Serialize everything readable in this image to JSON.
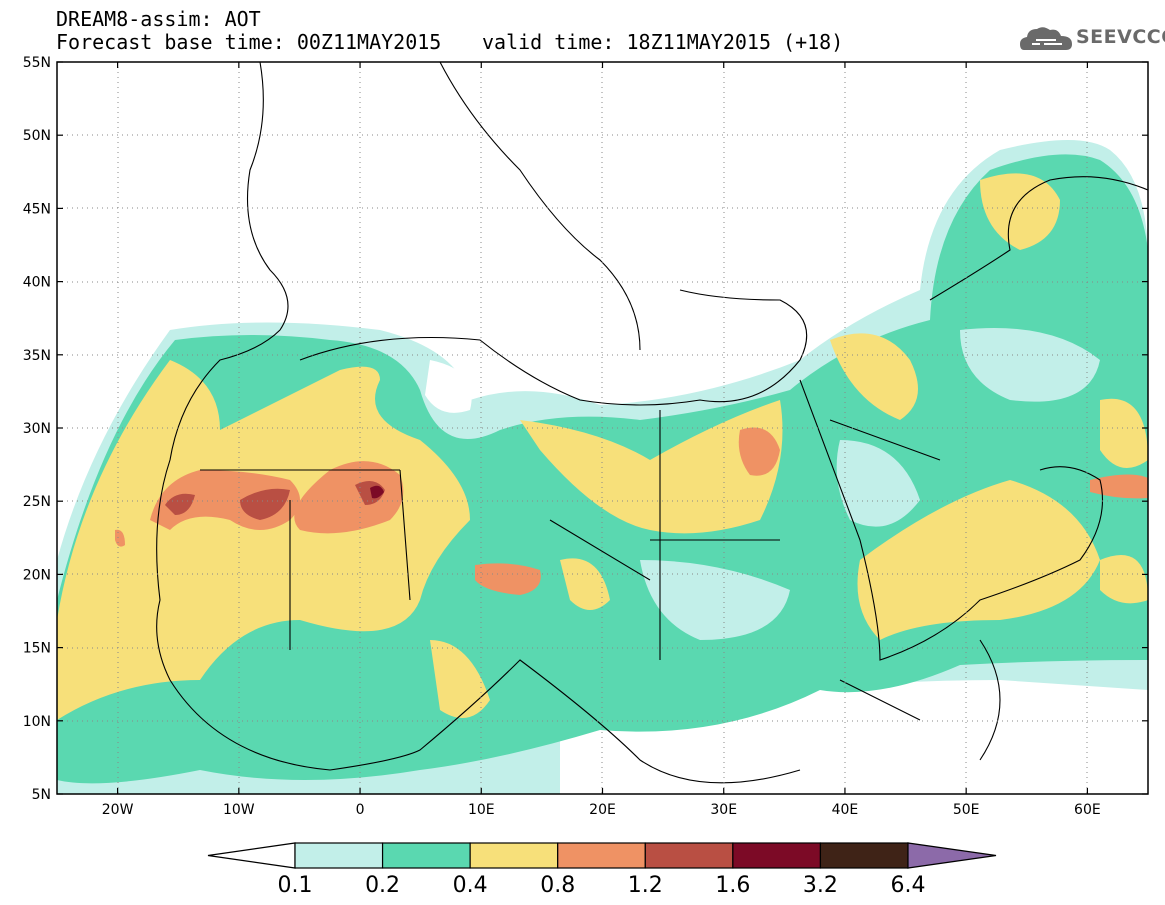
{
  "header": {
    "title": "DREAM8-assim: AOT",
    "base_time": "Forecast base time: 00Z11MAY2015",
    "valid_time": "valid time: 18Z11MAY2015 (+18)",
    "logo_text": "SEEVCCC"
  },
  "map": {
    "lat_labels": [
      "55N",
      "50N",
      "45N",
      "40N",
      "35N",
      "30N",
      "25N",
      "20N",
      "15N",
      "10N",
      "5N"
    ],
    "lat_values": [
      55,
      50,
      45,
      40,
      35,
      30,
      25,
      20,
      15,
      10,
      5
    ],
    "lon_labels": [
      "20W",
      "10W",
      "0",
      "10E",
      "20E",
      "30E",
      "40E",
      "50E",
      "60E"
    ],
    "lon_values": [
      -20,
      -10,
      0,
      10,
      20,
      30,
      40,
      50,
      60
    ],
    "lon_range": [
      -25,
      65
    ],
    "lat_range": [
      5,
      55
    ],
    "grid": "dotted"
  },
  "colorbar": {
    "labels": [
      "0.1",
      "0.2",
      "0.4",
      "0.8",
      "1.2",
      "1.6",
      "3.2",
      "6.4"
    ],
    "colors": [
      "#c2efe9",
      "#5ad8b0",
      "#f7e07a",
      "#ef9264",
      "#b94f43",
      "#7c0a26",
      "#3f2317"
    ],
    "under_color": "#ffffff",
    "over_color": "#8c6aa9"
  },
  "palette": {
    "c1": "#c2efe9",
    "c2": "#5ad8b0",
    "c3": "#f7e07a",
    "c4": "#ef9264",
    "c5": "#b94f43",
    "c6": "#7c0a26"
  }
}
